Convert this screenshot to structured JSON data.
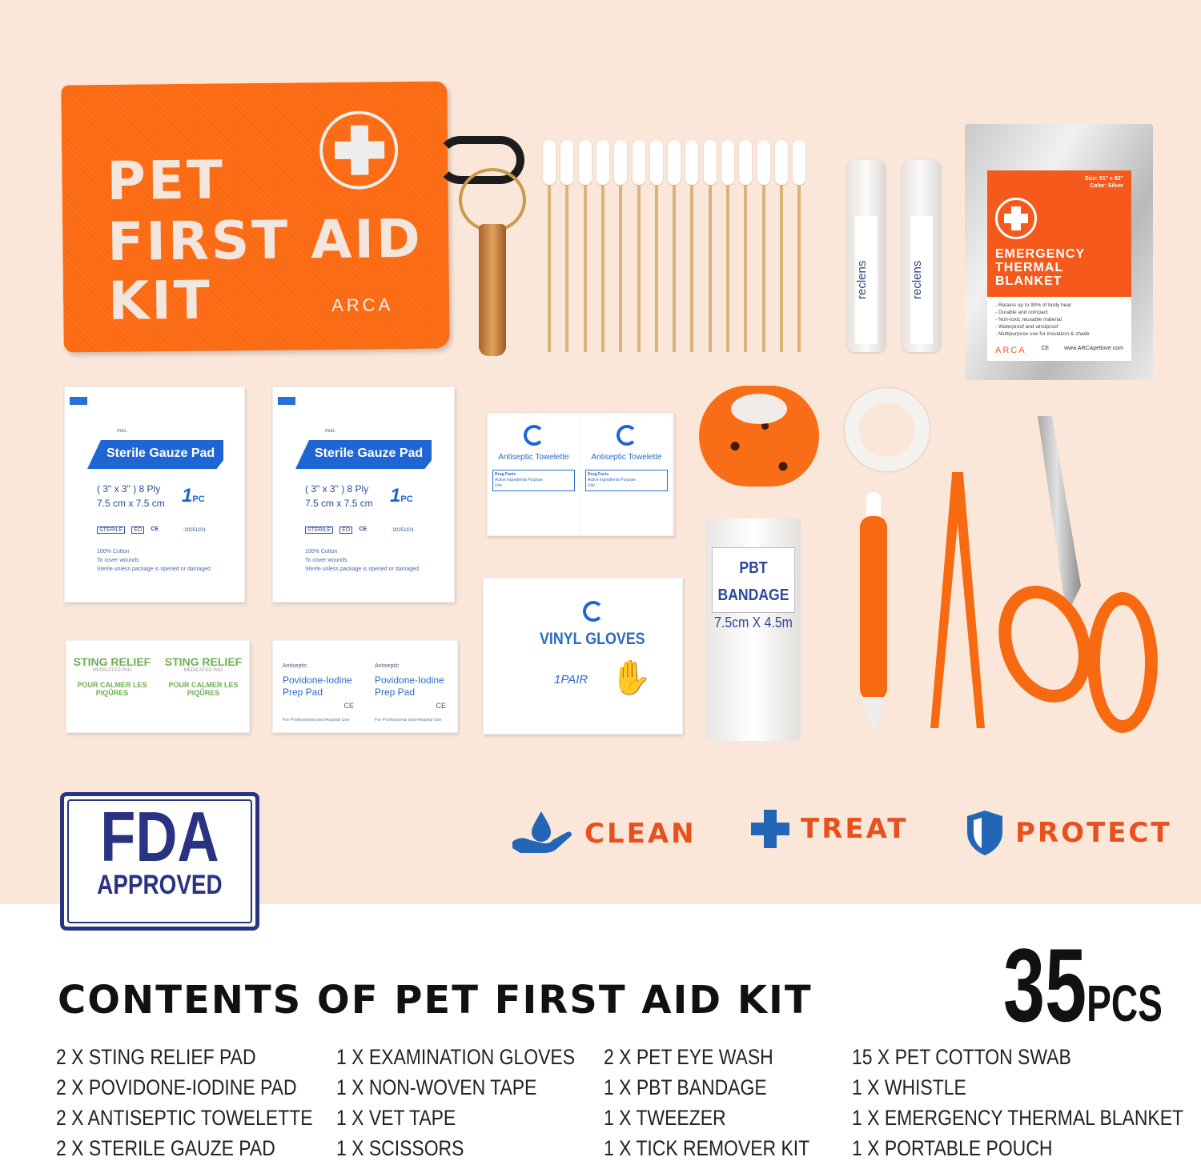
{
  "pouch": {
    "lines": [
      "PET",
      "FIRST AID",
      "KIT"
    ],
    "brand": "ARCA",
    "color": "#fb6a12"
  },
  "thermal_blanket": {
    "size": "Size: 51\" x 82\"",
    "color_label": "Color: Silver",
    "title": [
      "EMERGENCY",
      "THERMAL",
      "BLANKET"
    ],
    "features": [
      "- Retains up to 90% of body heat",
      "- Durable and compact",
      "- Non-toxic reusable material",
      "- Waterproof and windproof",
      "- Multipurpose use for insulation & shade"
    ],
    "ce": "CE",
    "brand": "ARCA",
    "website": "www.ARCApetlove.com"
  },
  "eye_wash": {
    "label": "reclens"
  },
  "gauze_pad": {
    "peel": "PEEL",
    "title": "Sterile Gauze Pad",
    "size_in": "( 3\" x 3\" ) 8 Ply",
    "size_cm": "7.5 cm x 7.5 cm",
    "count": "1",
    "count_unit": "PC",
    "marks": [
      "STERILE",
      "EO",
      "CE"
    ],
    "expiry": ":20251101",
    "notes": [
      "100% Cotton",
      "To cover wounds",
      "Sterile unless package is opened or damaged"
    ]
  },
  "towelette": {
    "title": "Antiseptic Towelette",
    "facts": [
      "Drug Facts",
      "Active Ingredients",
      "Purpose",
      "Use"
    ]
  },
  "sting_relief": {
    "title": "STING RELIEF",
    "subtitle": "MEDICATED PAD",
    "fr_title": "POUR CALMER LES PIQÛRES"
  },
  "povidone": {
    "kicker": "Antiseptic",
    "title_1": "Povidone-Iodine",
    "title_2": "Prep Pad",
    "ce": "CE",
    "footer": "For Professional and Hospital Use"
  },
  "gloves": {
    "title": "VINYL GLOVES",
    "count": "1PAIR"
  },
  "bandage": {
    "title": "PBT BANDAGE",
    "size": "7.5cm X 4.5m"
  },
  "fda": {
    "big": "FDA",
    "small": "APPROVED",
    "color": "#2a3381"
  },
  "pillars": [
    {
      "label": "CLEAN",
      "icon": "hand-water-drop-icon"
    },
    {
      "label": "TREAT",
      "icon": "medical-cross-icon"
    },
    {
      "label": "PROTECT",
      "icon": "shield-icon"
    }
  ],
  "accent_orange": "#e8501e",
  "accent_blue": "#2366b8",
  "contents": {
    "title": "CONTENTS OF PET FIRST AID KIT",
    "count": "35",
    "count_unit": "PCS",
    "columns": [
      [
        "2 X STING RELIEF PAD",
        "2 X POVIDONE-IODINE PAD",
        "2 X ANTISEPTIC TOWELETTE",
        "2 X STERILE GAUZE PAD"
      ],
      [
        "1 X EXAMINATION GLOVES",
        "1 X NON-WOVEN TAPE",
        "1 X VET TAPE",
        "1 X SCISSORS"
      ],
      [
        "2 X PET EYE WASH",
        "1 X PBT BANDAGE",
        "1 X TWEEZER",
        "1 X TICK REMOVER KIT"
      ],
      [
        "15 X PET COTTON SWAB",
        "1 X WHISTLE",
        "1 X EMERGENCY THERMAL BLANKET",
        "1 X PORTABLE POUCH"
      ]
    ]
  }
}
